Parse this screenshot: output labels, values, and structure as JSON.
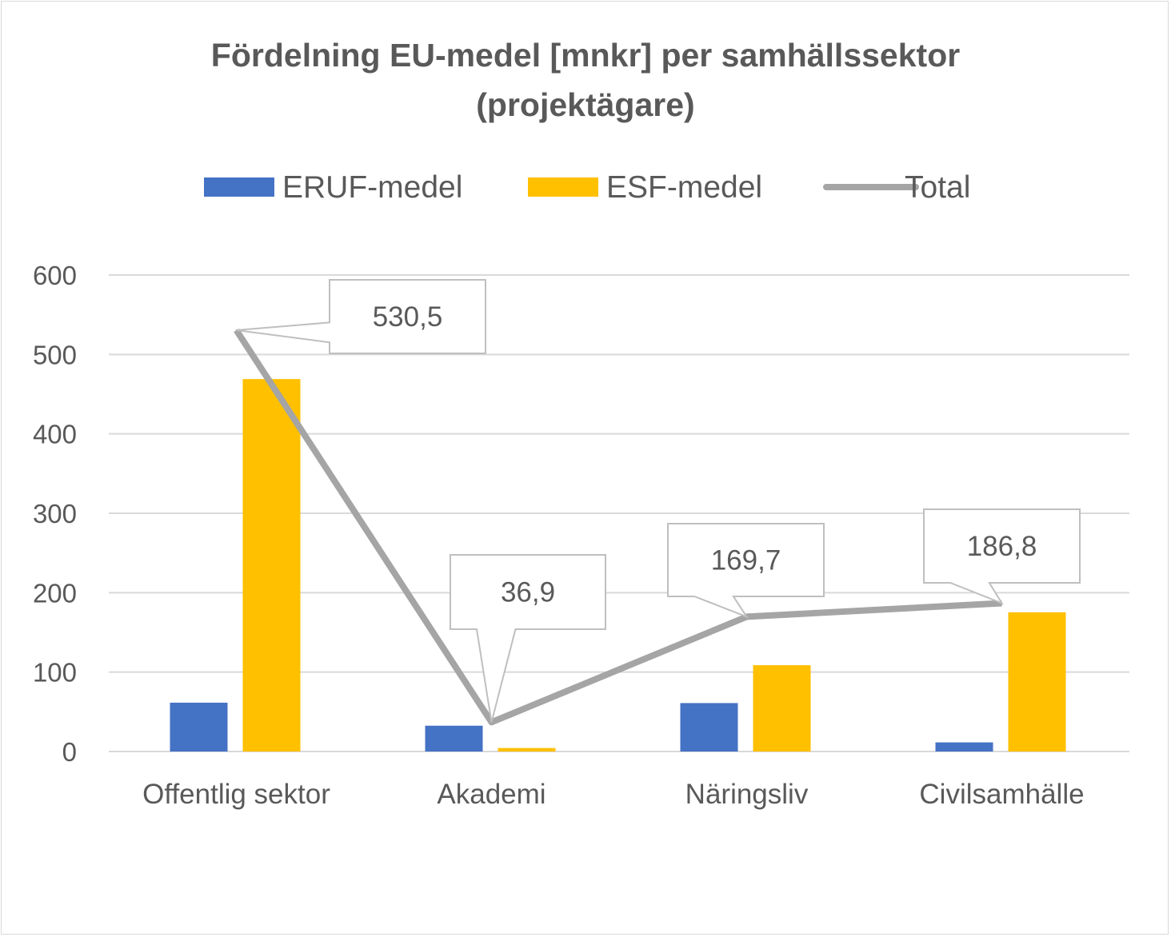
{
  "chart_data": {
    "type": "bar",
    "title_line1": "Fördelning EU-medel [mnkr] per samhällssektor",
    "title_line2": "(projektägare)",
    "categories": [
      "Offentlig sektor",
      "Akademi",
      "Näringsliv",
      "Civilsamhälle"
    ],
    "series": [
      {
        "name": "ERUF-medel",
        "kind": "bar",
        "color": "#4472C4",
        "values": [
          61.5,
          32.5,
          61,
          11.5
        ]
      },
      {
        "name": "ESF-medel",
        "kind": "bar",
        "color": "#FFC000",
        "values": [
          469,
          4.4,
          108.7,
          175.3
        ]
      },
      {
        "name": "Total",
        "kind": "line",
        "color": "#A5A5A5",
        "values": [
          530.5,
          36.9,
          169.7,
          186.8
        ],
        "data_labels": [
          "530,5",
          "36,9",
          "169,7",
          "186,8"
        ]
      }
    ],
    "ylim": [
      0,
      600
    ],
    "yticks": [
      0,
      100,
      200,
      300,
      400,
      500,
      600
    ],
    "grid": true,
    "legend_position": "top"
  }
}
